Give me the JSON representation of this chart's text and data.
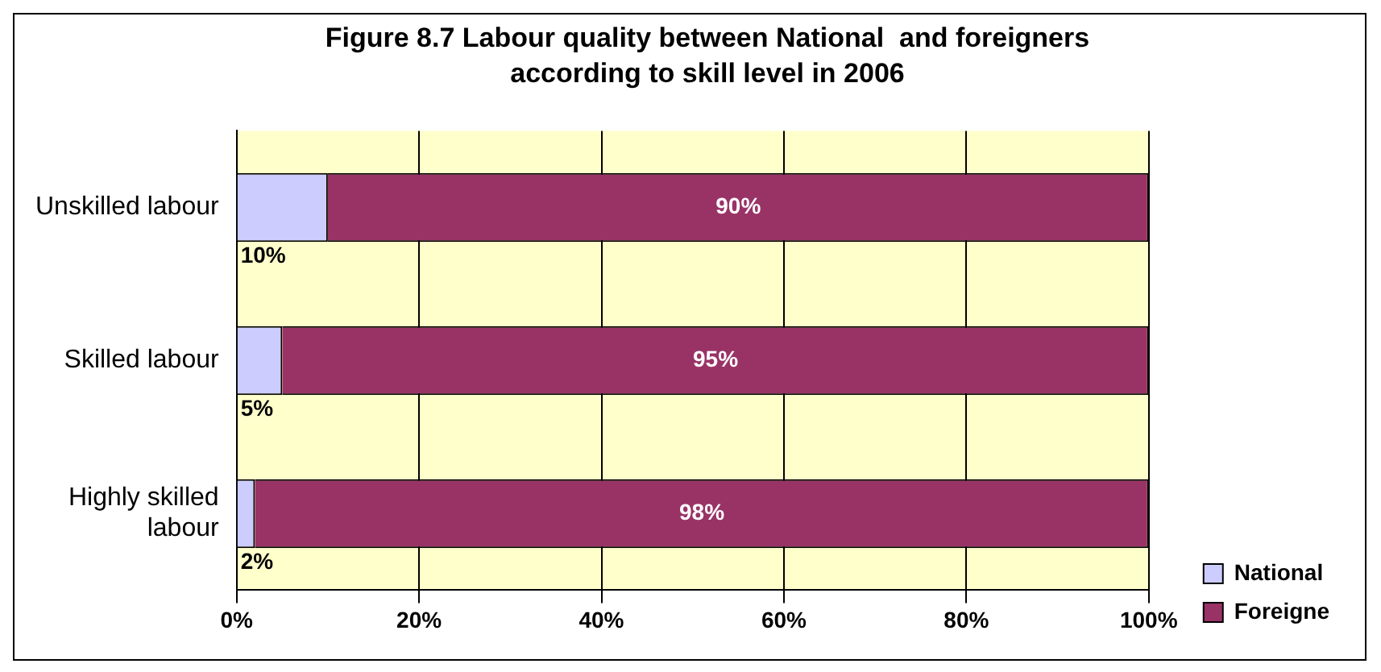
{
  "chart_data": {
    "type": "bar",
    "orientation": "horizontal",
    "stacked": true,
    "title": "Figure 8.7 Labour quality between National  and foreigners according to skill level in 2006",
    "categories": [
      "Unskilled labour",
      "Skilled labour",
      "Highly skilled labour"
    ],
    "series": [
      {
        "name": "National",
        "color": "#ccccff",
        "values": [
          10,
          5,
          2
        ],
        "value_labels": [
          "10%",
          "5%",
          "2%"
        ]
      },
      {
        "name": "Foreigne",
        "color": "#993366",
        "values": [
          90,
          95,
          98
        ],
        "value_labels": [
          "90%",
          "95%",
          "98%"
        ]
      }
    ],
    "xlim": [
      0,
      100
    ],
    "xticks": [
      {
        "value": 0,
        "label": "0%"
      },
      {
        "value": 20,
        "label": "20%"
      },
      {
        "value": 40,
        "label": "40%"
      },
      {
        "value": 60,
        "label": "60%"
      },
      {
        "value": 80,
        "label": "80%"
      },
      {
        "value": 100,
        "label": "100%"
      }
    ],
    "grid": "x",
    "legend": "bottom right"
  }
}
